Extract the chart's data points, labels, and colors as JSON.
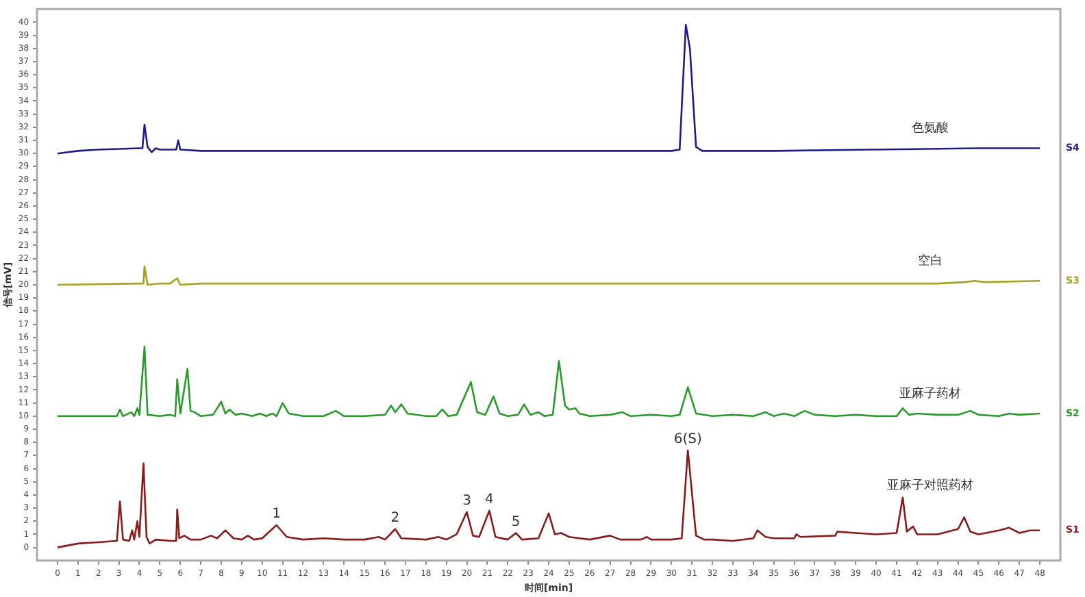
{
  "chart_data": {
    "type": "line",
    "xlabel": "时间[min]",
    "ylabel": "信号[mV]",
    "xlim": [
      -1,
      49
    ],
    "ylim": [
      -1,
      41
    ],
    "xticks": [
      0,
      1,
      2,
      3,
      4,
      5,
      6,
      7,
      8,
      9,
      10,
      11,
      12,
      13,
      14,
      15,
      16,
      17,
      18,
      19,
      20,
      21,
      22,
      23,
      24,
      25,
      26,
      27,
      28,
      29,
      30,
      31,
      32,
      33,
      34,
      35,
      36,
      37,
      38,
      39,
      40,
      41,
      42,
      43,
      44,
      45,
      46,
      47,
      48
    ],
    "yticks": [
      0,
      1,
      2,
      3,
      4,
      5,
      6,
      7,
      8,
      9,
      10,
      11,
      12,
      13,
      14,
      15,
      16,
      17,
      18,
      19,
      20,
      21,
      22,
      23,
      24,
      25,
      26,
      27,
      28,
      29,
      30,
      31,
      32,
      33,
      34,
      35,
      36,
      37,
      38,
      39,
      40
    ],
    "grid": false,
    "legend": false,
    "marker": "none",
    "line_style": "solid",
    "series": [
      {
        "name": "色氨酸",
        "color": "#1c1c8c",
        "x": [
          0,
          1,
          2,
          4,
          4.15,
          4.25,
          4.4,
          4.6,
          4.8,
          5,
          5.8,
          5.9,
          6,
          7,
          10,
          15,
          20,
          25,
          30,
          30.4,
          30.7,
          30.9,
          31.2,
          31.5,
          35,
          40,
          45,
          48
        ],
        "values": [
          30,
          30.2,
          30.3,
          30.4,
          30.4,
          32.2,
          30.5,
          30.1,
          30.4,
          30.3,
          30.3,
          31,
          30.3,
          30.2,
          30.2,
          30.2,
          30.2,
          30.2,
          30.2,
          30.3,
          39.8,
          38,
          30.5,
          30.2,
          30.2,
          30.3,
          30.4,
          30.4
        ]
      },
      {
        "name": "空白",
        "color": "#a8a020",
        "x": [
          0,
          4,
          4.2,
          4.25,
          4.4,
          5,
          5.5,
          5.85,
          6,
          7,
          10,
          20,
          30,
          35,
          40,
          43,
          44.3,
          44.8,
          45.3,
          48
        ],
        "values": [
          20,
          20.1,
          20.1,
          21.4,
          20,
          20.1,
          20.1,
          20.5,
          20,
          20.1,
          20.1,
          20.1,
          20.1,
          20.1,
          20.1,
          20.1,
          20.2,
          20.3,
          20.2,
          20.3
        ]
      },
      {
        "name": "亚麻子药材",
        "color": "#2a9a2a",
        "x": [
          0,
          2.9,
          3.05,
          3.2,
          3.6,
          3.75,
          3.9,
          4,
          4.25,
          4.4,
          5,
          5.5,
          5.75,
          5.85,
          6,
          6.35,
          6.5,
          6.7,
          7,
          7.6,
          8,
          8.2,
          8.4,
          8.7,
          9,
          9.5,
          9.9,
          10.2,
          10.5,
          10.7,
          11,
          11.3,
          12,
          13,
          13.6,
          14,
          15,
          16,
          16.3,
          16.5,
          16.8,
          17.1,
          18,
          18.5,
          18.8,
          19.1,
          19.5,
          20.2,
          20.5,
          20.9,
          21.3,
          21.6,
          22,
          22.5,
          22.8,
          23.1,
          23.5,
          23.8,
          24.2,
          24.5,
          24.8,
          25,
          25.3,
          25.5,
          26,
          27,
          27.6,
          28,
          29,
          30,
          30.4,
          30.8,
          31.2,
          32,
          33,
          34,
          34.6,
          35,
          35.5,
          36,
          36.5,
          37,
          38,
          39,
          40,
          41,
          41.3,
          41.6,
          42,
          43,
          44,
          44.6,
          45,
          46,
          46.5,
          47,
          48
        ],
        "values": [
          10,
          10,
          10.5,
          10,
          10.3,
          10,
          10.6,
          10.1,
          15.3,
          10.1,
          10,
          10.1,
          10,
          12.8,
          10.2,
          13.6,
          10.4,
          10.3,
          10,
          10.1,
          11.1,
          10.2,
          10.5,
          10.1,
          10.2,
          10,
          10.2,
          10,
          10.2,
          10,
          11,
          10.2,
          10,
          10,
          10.4,
          10,
          10,
          10.1,
          10.8,
          10.3,
          10.9,
          10.2,
          10,
          10,
          10.5,
          10,
          10.1,
          12.6,
          10.3,
          10.1,
          11.5,
          10.2,
          10,
          10.1,
          10.9,
          10.1,
          10.3,
          10,
          10.1,
          14.2,
          10.8,
          10.5,
          10.6,
          10.2,
          10,
          10.1,
          10.3,
          10,
          10.1,
          10,
          10.1,
          12.2,
          10.2,
          10,
          10.1,
          10,
          10.3,
          10,
          10.2,
          10,
          10.4,
          10.1,
          10,
          10.1,
          10,
          10,
          10.6,
          10.1,
          10.2,
          10.1,
          10.1,
          10.4,
          10.1,
          10,
          10.2,
          10.1,
          10.2
        ]
      },
      {
        "name": "亚麻子对照药材",
        "color": "#8b1a1a",
        "x": [
          0,
          1,
          2,
          2.9,
          3.05,
          3.2,
          3.5,
          3.65,
          3.75,
          3.9,
          4,
          4.2,
          4.35,
          4.5,
          4.8,
          5.5,
          5.8,
          5.85,
          5.95,
          6.2,
          6.5,
          7,
          7.5,
          7.8,
          8.2,
          8.6,
          9,
          9.3,
          9.6,
          10,
          10.7,
          11.2,
          12,
          13,
          14,
          15,
          15.7,
          16,
          16.5,
          16.8,
          18,
          18.6,
          19,
          19.5,
          20,
          20.3,
          20.6,
          21.1,
          21.4,
          22,
          22.4,
          22.7,
          23.5,
          24,
          24.3,
          24.6,
          25,
          26,
          27,
          27.5,
          28.5,
          28.8,
          29,
          30,
          30.5,
          30.8,
          31.2,
          31.6,
          32,
          33,
          34,
          34.2,
          34.6,
          35,
          36,
          36.1,
          36.3,
          38,
          38.1,
          39,
          40,
          41,
          41.3,
          41.5,
          41.8,
          42,
          43,
          44,
          44.3,
          44.6,
          45,
          46,
          46.5,
          47,
          47.5,
          48
        ],
        "values": [
          0,
          0.3,
          0.4,
          0.5,
          3.5,
          0.6,
          0.5,
          1.3,
          0.6,
          2,
          0.8,
          6.4,
          0.8,
          0.3,
          0.6,
          0.5,
          0.5,
          2.9,
          0.7,
          0.9,
          0.6,
          0.6,
          0.9,
          0.7,
          1.3,
          0.7,
          0.6,
          0.9,
          0.6,
          0.7,
          1.7,
          0.8,
          0.6,
          0.7,
          0.6,
          0.6,
          0.8,
          0.6,
          1.4,
          0.7,
          0.6,
          0.8,
          0.6,
          1,
          2.7,
          0.9,
          0.8,
          2.8,
          0.8,
          0.6,
          1.1,
          0.6,
          0.7,
          2.6,
          1,
          1.1,
          0.8,
          0.6,
          0.9,
          0.6,
          0.6,
          0.8,
          0.6,
          0.6,
          0.7,
          7.4,
          0.9,
          0.6,
          0.6,
          0.5,
          0.7,
          1.3,
          0.8,
          0.7,
          0.7,
          1,
          0.8,
          0.9,
          1.2,
          1.1,
          1,
          1.1,
          3.8,
          1.2,
          1.6,
          1,
          1,
          1.4,
          2.3,
          1.2,
          1,
          1.3,
          1.5,
          1.1,
          1.3,
          1.3
        ]
      }
    ],
    "annotations": [
      {
        "text": "1",
        "x": 10.7,
        "y": 1.7
      },
      {
        "text": "2",
        "x": 16.5,
        "y": 1.4
      },
      {
        "text": "3",
        "x": 20,
        "y": 2.7
      },
      {
        "text": "4",
        "x": 21.1,
        "y": 2.8
      },
      {
        "text": "5",
        "x": 22.4,
        "y": 1.1
      },
      {
        "text": "6(S)",
        "x": 30.8,
        "y": 7.4
      },
      {
        "text": "S4",
        "x": 48,
        "y": 30.4
      },
      {
        "text": "S3",
        "x": 48,
        "y": 20.3
      },
      {
        "text": "S2",
        "x": 48,
        "y": 10.2
      },
      {
        "text": "S1",
        "x": 48,
        "y": 1.3
      }
    ]
  }
}
